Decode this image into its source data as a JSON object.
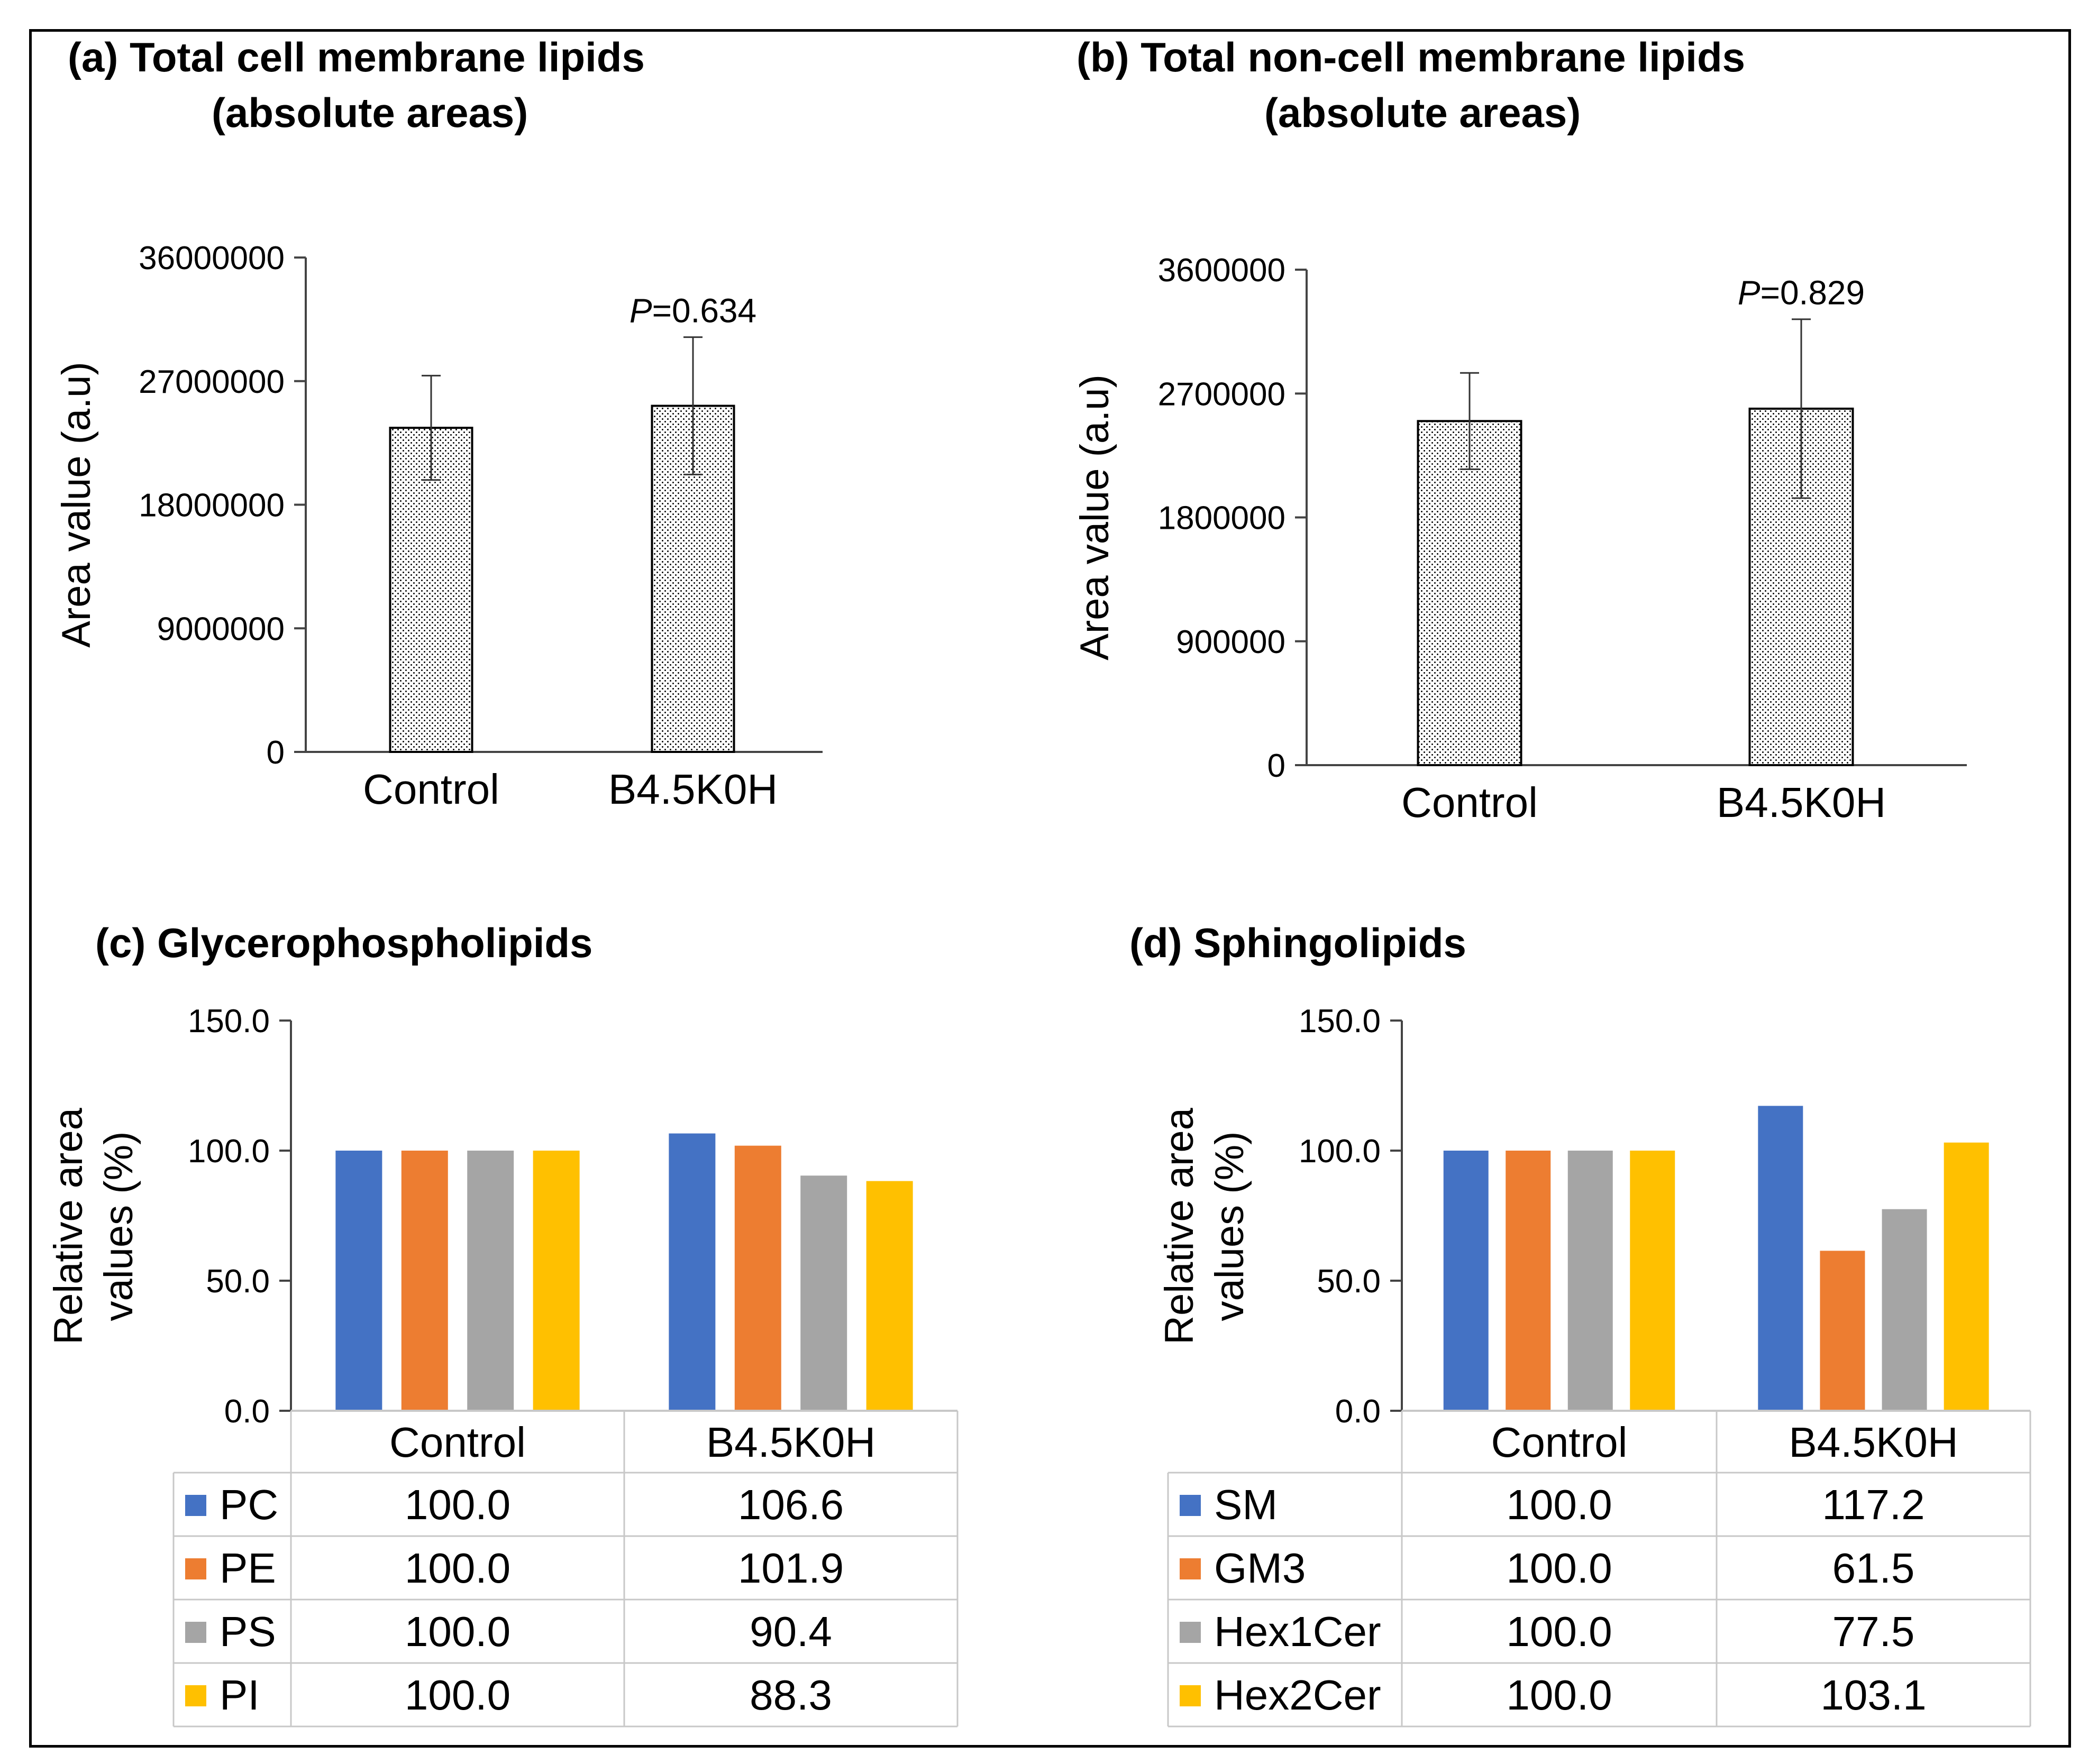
{
  "chart_data": [
    {
      "panel": "a",
      "type": "bar",
      "title": [
        "(a) Total cell membrane lipids",
        "(absolute areas)"
      ],
      "ylabel": "Area value (a.u)",
      "xlabel": "",
      "categories": [
        "Control",
        "B4.5K0H"
      ],
      "values": [
        23600000,
        25200000
      ],
      "errors": [
        3800000,
        5000000
      ],
      "yticks": [
        "0",
        "9000000",
        "18000000",
        "27000000",
        "36000000"
      ],
      "ylim": [
        0,
        36000000
      ],
      "annotation": {
        "italic": "P",
        "rest": "=0.634"
      },
      "grid": false,
      "legend": "none"
    },
    {
      "panel": "b",
      "type": "bar",
      "title": [
        "(b) Total non-cell membrane lipids",
        "(absolute areas)"
      ],
      "ylabel": "Area value (a.u)",
      "xlabel": "",
      "categories": [
        "Control",
        "B4.5K0H"
      ],
      "values": [
        2500000,
        2590000
      ],
      "errors": [
        350000,
        650000
      ],
      "yticks": [
        "0",
        "900000",
        "1800000",
        "2700000",
        "3600000"
      ],
      "ylim": [
        0,
        3600000
      ],
      "annotation": {
        "italic": "P",
        "rest": "=0.829"
      },
      "grid": false,
      "legend": "none"
    },
    {
      "panel": "c",
      "type": "bar",
      "title": [
        "(c) Glycerophospholipids"
      ],
      "ylabel": [
        "Relative area",
        "values (%)"
      ],
      "categories": [
        "Control",
        "B4.5K0H"
      ],
      "series": [
        {
          "name": "PC",
          "values": [
            100.0,
            106.6
          ],
          "labels": [
            "100.0",
            "106.6"
          ],
          "color": "#4472C4"
        },
        {
          "name": "PE",
          "values": [
            100.0,
            101.9
          ],
          "labels": [
            "100.0",
            "101.9"
          ],
          "color": "#ED7D31"
        },
        {
          "name": "PS",
          "values": [
            100.0,
            90.4
          ],
          "labels": [
            "100.0",
            "90.4"
          ],
          "color": "#A5A5A5"
        },
        {
          "name": "PI",
          "values": [
            100.0,
            88.3
          ],
          "labels": [
            "100.0",
            "88.3"
          ],
          "color": "#FFC000"
        }
      ],
      "yticks": [
        "0.0",
        "50.0",
        "100.0",
        "150.0"
      ],
      "ylim": [
        0,
        150
      ],
      "grid": false,
      "legend": "data table"
    },
    {
      "panel": "d",
      "type": "bar",
      "title": [
        "(d) Sphingolipids"
      ],
      "ylabel": [
        "Relative area",
        "values (%)"
      ],
      "categories": [
        "Control",
        "B4.5K0H"
      ],
      "series": [
        {
          "name": "SM",
          "values": [
            100.0,
            117.2
          ],
          "labels": [
            "100.0",
            "117.2"
          ],
          "color": "#4472C4"
        },
        {
          "name": "GM3",
          "values": [
            100.0,
            61.5
          ],
          "labels": [
            "100.0",
            "61.5"
          ],
          "color": "#ED7D31"
        },
        {
          "name": "Hex1Cer",
          "values": [
            100.0,
            77.5
          ],
          "labels": [
            "100.0",
            "77.5"
          ],
          "color": "#A5A5A5"
        },
        {
          "name": "Hex2Cer",
          "values": [
            100.0,
            103.1
          ],
          "labels": [
            "100.0",
            "103.1"
          ],
          "color": "#FFC000"
        }
      ],
      "yticks": [
        "0.0",
        "50.0",
        "100.0",
        "150.0"
      ],
      "ylim": [
        0,
        150
      ],
      "grid": false,
      "legend": "data table"
    }
  ]
}
